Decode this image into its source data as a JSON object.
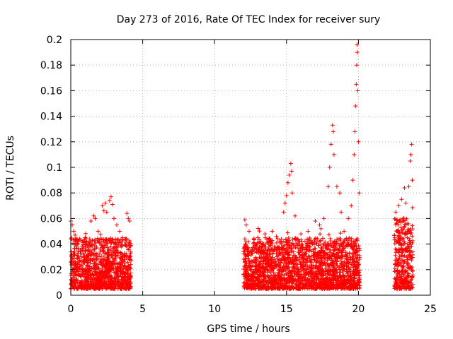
{
  "chart_data": {
    "type": "scatter",
    "title": "Day 273 of 2016, Rate Of TEC Index for receiver sury",
    "xlabel": "GPS time / hours",
    "ylabel": "ROTI / TECUs",
    "xlim": [
      0,
      25
    ],
    "ylim": [
      0,
      0.2
    ],
    "xticks": [
      0,
      5,
      10,
      15,
      20,
      25
    ],
    "xtick_labels": [
      "0",
      "5",
      "10",
      "15",
      "20",
      "25"
    ],
    "yticks": [
      0,
      0.02,
      0.04,
      0.06,
      0.08,
      0.1,
      0.12,
      0.14,
      0.16,
      0.18,
      0.2
    ],
    "ytick_labels": [
      "0",
      "0.02",
      "0.04",
      "0.06",
      "0.08",
      "0.1",
      "0.12",
      "0.14",
      "0.16",
      "0.18",
      "0.2"
    ],
    "grid": true,
    "marker": "+",
    "color": "#ff0000",
    "series": [
      {
        "name": "ROTI",
        "segments": [
          {
            "x_range": [
              0.0,
              4.2
            ],
            "typical": [
              0.005,
              0.045
            ],
            "peak": 0.077
          },
          {
            "x_range": [
              12.0,
              20.1
            ],
            "typical": [
              0.005,
              0.045
            ],
            "peak": 0.196
          },
          {
            "x_range": [
              22.5,
              23.8
            ],
            "typical": [
              0.005,
              0.06
            ],
            "peak": 0.118
          }
        ],
        "points": [
          {
            "x": 0.0,
            "y": 0.058
          },
          {
            "x": 0.1,
            "y": 0.055
          },
          {
            "x": 0.2,
            "y": 0.05
          },
          {
            "x": 0.3,
            "y": 0.047
          },
          {
            "x": 0.4,
            "y": 0.044
          },
          {
            "x": 0.5,
            "y": 0.04
          },
          {
            "x": 0.7,
            "y": 0.043
          },
          {
            "x": 1.0,
            "y": 0.045
          },
          {
            "x": 1.4,
            "y": 0.058
          },
          {
            "x": 1.6,
            "y": 0.062
          },
          {
            "x": 1.7,
            "y": 0.06
          },
          {
            "x": 1.9,
            "y": 0.05
          },
          {
            "x": 2.2,
            "y": 0.07
          },
          {
            "x": 2.3,
            "y": 0.066
          },
          {
            "x": 2.4,
            "y": 0.072
          },
          {
            "x": 2.5,
            "y": 0.065
          },
          {
            "x": 2.7,
            "y": 0.074
          },
          {
            "x": 2.8,
            "y": 0.077
          },
          {
            "x": 2.9,
            "y": 0.071
          },
          {
            "x": 3.0,
            "y": 0.06
          },
          {
            "x": 3.2,
            "y": 0.055
          },
          {
            "x": 3.4,
            "y": 0.05
          },
          {
            "x": 3.6,
            "y": 0.045
          },
          {
            "x": 3.9,
            "y": 0.064
          },
          {
            "x": 4.0,
            "y": 0.06
          },
          {
            "x": 4.1,
            "y": 0.058
          },
          {
            "x": 12.1,
            "y": 0.059
          },
          {
            "x": 12.2,
            "y": 0.055
          },
          {
            "x": 12.4,
            "y": 0.05
          },
          {
            "x": 13.0,
            "y": 0.045
          },
          {
            "x": 13.5,
            "y": 0.048
          },
          {
            "x": 14.0,
            "y": 0.05
          },
          {
            "x": 14.3,
            "y": 0.046
          },
          {
            "x": 14.8,
            "y": 0.065
          },
          {
            "x": 14.9,
            "y": 0.072
          },
          {
            "x": 15.0,
            "y": 0.078
          },
          {
            "x": 15.1,
            "y": 0.088
          },
          {
            "x": 15.2,
            "y": 0.094
          },
          {
            "x": 15.3,
            "y": 0.103
          },
          {
            "x": 15.35,
            "y": 0.097
          },
          {
            "x": 15.4,
            "y": 0.08
          },
          {
            "x": 15.6,
            "y": 0.062
          },
          {
            "x": 16.0,
            "y": 0.048
          },
          {
            "x": 16.5,
            "y": 0.05
          },
          {
            "x": 17.0,
            "y": 0.058
          },
          {
            "x": 17.3,
            "y": 0.055
          },
          {
            "x": 17.6,
            "y": 0.06
          },
          {
            "x": 17.9,
            "y": 0.085
          },
          {
            "x": 18.0,
            "y": 0.1
          },
          {
            "x": 18.1,
            "y": 0.118
          },
          {
            "x": 18.2,
            "y": 0.133
          },
          {
            "x": 18.25,
            "y": 0.128
          },
          {
            "x": 18.3,
            "y": 0.11
          },
          {
            "x": 18.5,
            "y": 0.085
          },
          {
            "x": 18.7,
            "y": 0.08
          },
          {
            "x": 18.8,
            "y": 0.065
          },
          {
            "x": 19.0,
            "y": 0.05
          },
          {
            "x": 19.3,
            "y": 0.06
          },
          {
            "x": 19.5,
            "y": 0.07
          },
          {
            "x": 19.6,
            "y": 0.09
          },
          {
            "x": 19.7,
            "y": 0.11
          },
          {
            "x": 19.75,
            "y": 0.128
          },
          {
            "x": 19.8,
            "y": 0.148
          },
          {
            "x": 19.85,
            "y": 0.165
          },
          {
            "x": 19.88,
            "y": 0.18
          },
          {
            "x": 19.9,
            "y": 0.196
          },
          {
            "x": 19.92,
            "y": 0.19
          },
          {
            "x": 19.95,
            "y": 0.16
          },
          {
            "x": 20.0,
            "y": 0.12
          },
          {
            "x": 20.05,
            "y": 0.08
          },
          {
            "x": 22.6,
            "y": 0.065
          },
          {
            "x": 22.8,
            "y": 0.07
          },
          {
            "x": 23.0,
            "y": 0.075
          },
          {
            "x": 23.2,
            "y": 0.084
          },
          {
            "x": 23.3,
            "y": 0.072
          },
          {
            "x": 23.5,
            "y": 0.085
          },
          {
            "x": 23.6,
            "y": 0.105
          },
          {
            "x": 23.65,
            "y": 0.11
          },
          {
            "x": 23.7,
            "y": 0.118
          },
          {
            "x": 23.75,
            "y": 0.09
          }
        ]
      }
    ]
  }
}
